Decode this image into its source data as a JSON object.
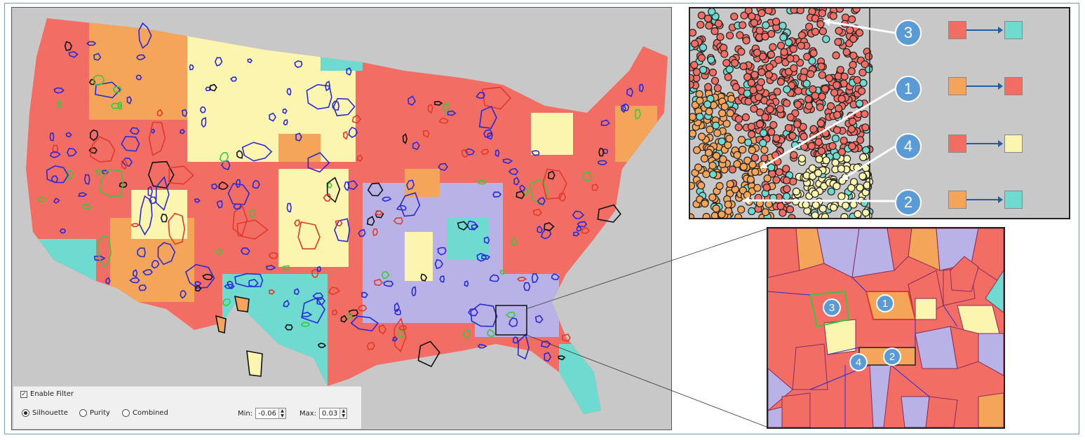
{
  "filter": {
    "enable_label": "Enable Filter",
    "enabled": true,
    "modes": [
      "Silhouette",
      "Purity",
      "Combined"
    ],
    "selected_mode": "Silhouette",
    "min_label": "Min:",
    "min_value": "-0.06",
    "max_label": "Max:",
    "max_value": "0.03"
  },
  "colors": {
    "red": "#f26e64",
    "orange": "#f5a55a",
    "teal": "#6fdbd0",
    "yellow": "#fbf5b0",
    "lavender": "#b9b2e6",
    "gray": "#c8c8c8",
    "badge": "#5b9bd5",
    "outline_blue": "#2a2ad4",
    "outline_green": "#3cc83c"
  },
  "transitions": [
    {
      "number": "3",
      "from": "red",
      "to": "teal"
    },
    {
      "number": "1",
      "from": "orange",
      "to": "red"
    },
    {
      "number": "4",
      "from": "red",
      "to": "yellow"
    },
    {
      "number": "2",
      "from": "orange",
      "to": "teal"
    }
  ],
  "zoom_labels": [
    "3",
    "1",
    "4",
    "2"
  ]
}
